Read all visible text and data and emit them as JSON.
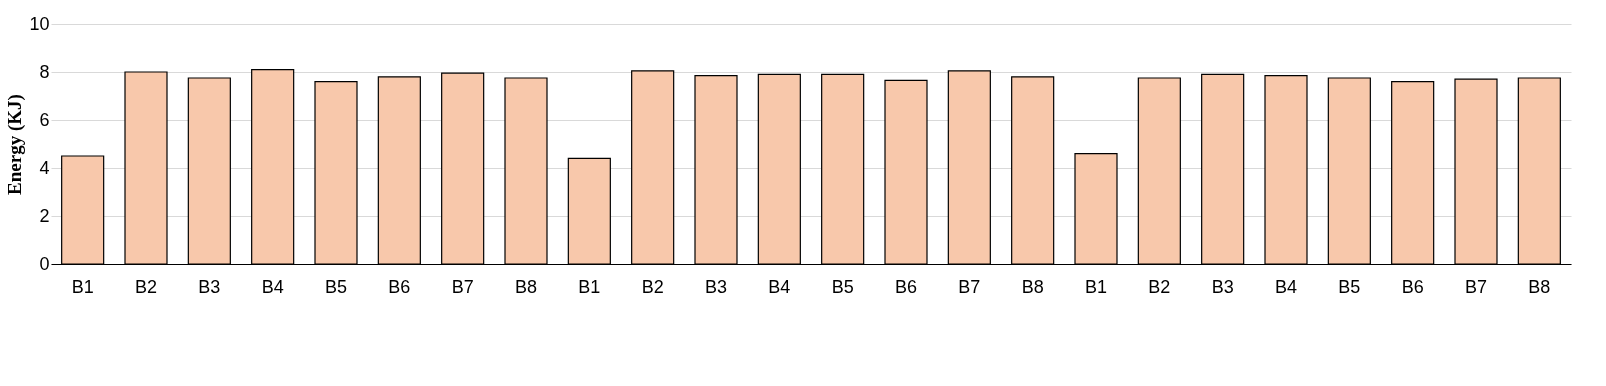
{
  "chart_data": {
    "type": "bar",
    "ylabel": "Energy (KJ)",
    "categories": [
      "B1",
      "B2",
      "B3",
      "B4",
      "B5",
      "B6",
      "B7",
      "B8",
      "B1",
      "B2",
      "B3",
      "B4",
      "B5",
      "B6",
      "B7",
      "B8",
      "B1",
      "B2",
      "B3",
      "B4",
      "B5",
      "B6",
      "B7",
      "B8"
    ],
    "series": [
      {
        "color": "#f8c8ab",
        "values": [
          4.5,
          8.0,
          7.75,
          8.1,
          7.6,
          7.8,
          7.95,
          7.75,
          4.4,
          8.05,
          7.85,
          7.9,
          7.9,
          7.65,
          8.05,
          7.8,
          4.6,
          7.75,
          7.9,
          7.85,
          7.75,
          7.6,
          7.7,
          7.75
        ]
      }
    ],
    "ylim": [
      0,
      10
    ],
    "yticks": [
      0,
      2,
      4,
      6,
      8,
      10
    ],
    "grid": "y",
    "legend": false
  }
}
